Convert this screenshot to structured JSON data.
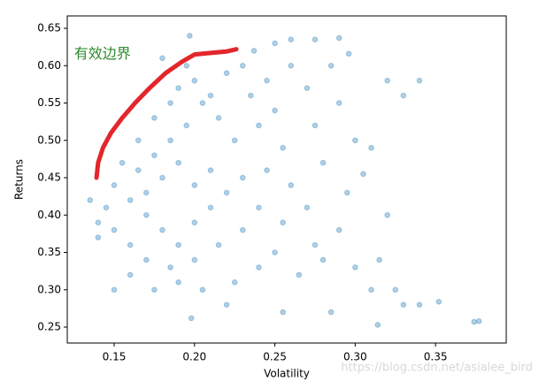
{
  "chart_data": {
    "type": "scatter",
    "xlabel": "Volatility",
    "ylabel": "Returns",
    "annotation": {
      "text": "有效边界",
      "x": 0.135,
      "y": 0.615,
      "color": "#2e8b2e"
    },
    "watermark": "https://blog.csdn.net/asialee_bird",
    "xlim": [
      0.1208,
      0.394
    ],
    "ylim": [
      0.2287,
      0.6666
    ],
    "xticks": [
      0.15,
      0.2,
      0.25,
      0.3,
      0.35
    ],
    "xtick_labels": [
      "0.15",
      "0.20",
      "0.25",
      "0.30",
      "0.35"
    ],
    "yticks": [
      0.25,
      {
        "value": 0.3,
        "label": "0.30"
      },
      0.35,
      {
        "value": 0.4,
        "label": "0.40"
      },
      0.45,
      {
        "value": 0.5,
        "label": "0.50"
      },
      0.55,
      {
        "value": 0.6,
        "label": "0.60"
      },
      0.65
    ],
    "color": "#1f77b4",
    "x": [
      0.18,
      0.19,
      0.2,
      0.21,
      0.17,
      0.185,
      0.195,
      0.205,
      0.19,
      0.2,
      0.175,
      0.165,
      0.16,
      0.17,
      0.18,
      0.19,
      0.2,
      0.21,
      0.22,
      0.23,
      0.225,
      0.215,
      0.21,
      0.22,
      0.195,
      0.185,
      0.175,
      0.165,
      0.155,
      0.15,
      0.145,
      0.15,
      0.16,
      0.17,
      0.185,
      0.2,
      0.215,
      0.23,
      0.24,
      0.245,
      0.24,
      0.235,
      0.23,
      0.245,
      0.25,
      0.255,
      0.26,
      0.255,
      0.25,
      0.24,
      0.225,
      0.205,
      0.19,
      0.175,
      0.16,
      0.14,
      0.135,
      0.14,
      0.27,
      0.275,
      0.28,
      0.27,
      0.275,
      0.265,
      0.285,
      0.29,
      0.3,
      0.295,
      0.29,
      0.3,
      0.31,
      0.32,
      0.33,
      0.34,
      0.31,
      0.32,
      0.315,
      0.33,
      0.34,
      0.352,
      0.374,
      0.377,
      0.29,
      0.296,
      0.25,
      0.26,
      0.275,
      0.197,
      0.18,
      0.198,
      0.255,
      0.285,
      0.314,
      0.325,
      0.305,
      0.28,
      0.26,
      0.237,
      0.22,
      0.15
    ],
    "y": [
      0.45,
      0.47,
      0.44,
      0.46,
      0.43,
      0.5,
      0.52,
      0.55,
      0.57,
      0.58,
      0.48,
      0.46,
      0.42,
      0.4,
      0.38,
      0.36,
      0.39,
      0.41,
      0.43,
      0.45,
      0.5,
      0.53,
      0.56,
      0.59,
      0.6,
      0.55,
      0.53,
      0.5,
      0.47,
      0.44,
      0.41,
      0.38,
      0.36,
      0.34,
      0.33,
      0.34,
      0.36,
      0.38,
      0.41,
      0.46,
      0.52,
      0.56,
      0.6,
      0.58,
      0.54,
      0.49,
      0.44,
      0.39,
      0.35,
      0.33,
      0.31,
      0.3,
      0.31,
      0.3,
      0.32,
      0.37,
      0.42,
      0.39,
      0.57,
      0.52,
      0.47,
      0.41,
      0.36,
      0.32,
      0.6,
      0.55,
      0.5,
      0.43,
      0.38,
      0.33,
      0.3,
      0.58,
      0.56,
      0.58,
      0.49,
      0.4,
      0.34,
      0.28,
      0.28,
      0.284,
      0.257,
      0.258,
      0.637,
      0.616,
      0.63,
      0.635,
      0.635,
      0.64,
      0.61,
      0.262,
      0.27,
      0.27,
      0.253,
      0.3,
      0.455,
      0.34,
      0.6,
      0.62,
      0.28,
      0.3
    ],
    "frontier": {
      "color": "#e3262b",
      "x": [
        0.139,
        0.14,
        0.143,
        0.148,
        0.155,
        0.163,
        0.172,
        0.182,
        0.192,
        0.2,
        0.21,
        0.22,
        0.226
      ],
      "y": [
        0.45,
        0.47,
        0.49,
        0.51,
        0.53,
        0.55,
        0.57,
        0.59,
        0.605,
        0.615,
        0.617,
        0.619,
        0.622
      ]
    }
  }
}
